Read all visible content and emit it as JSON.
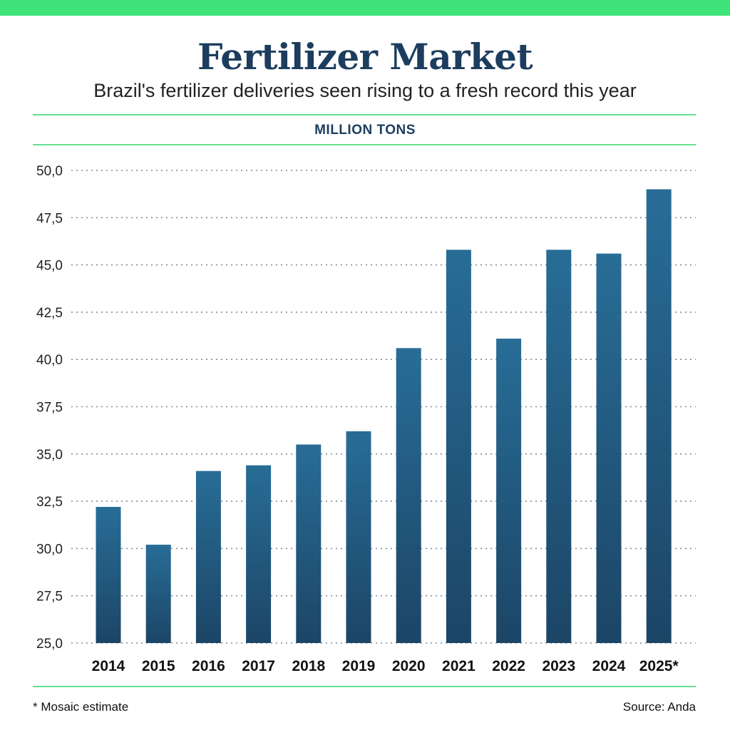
{
  "header": {
    "title": "Fertilizer Market",
    "subtitle": "Brazil's fertilizer deliveries seen rising to a fresh record this year",
    "unit_label": "MILLION TONS"
  },
  "footer": {
    "footnote": "* Mosaic estimate",
    "source": "Source: Anda"
  },
  "colors": {
    "accent": "#3ee37a",
    "bar_top": "#286d97",
    "bar_bottom": "#1c4566",
    "title": "#1c3d5e",
    "grid": "#7f8f9c"
  },
  "chart_data": {
    "type": "bar",
    "categories": [
      "2014",
      "2015",
      "2016",
      "2017",
      "2018",
      "2019",
      "2020",
      "2021",
      "2022",
      "2023",
      "2024",
      "2025*"
    ],
    "values": [
      32.2,
      30.2,
      34.1,
      34.4,
      35.5,
      36.2,
      40.6,
      45.8,
      41.1,
      45.8,
      45.6,
      49.0
    ],
    "ylim": [
      25,
      50
    ],
    "yticks": [
      "25,0",
      "27,5",
      "30,0",
      "32,5",
      "35,0",
      "37,5",
      "40,0",
      "42,5",
      "45,0",
      "47,5",
      "50,0"
    ],
    "grid": true,
    "grid_style": "dotted"
  }
}
